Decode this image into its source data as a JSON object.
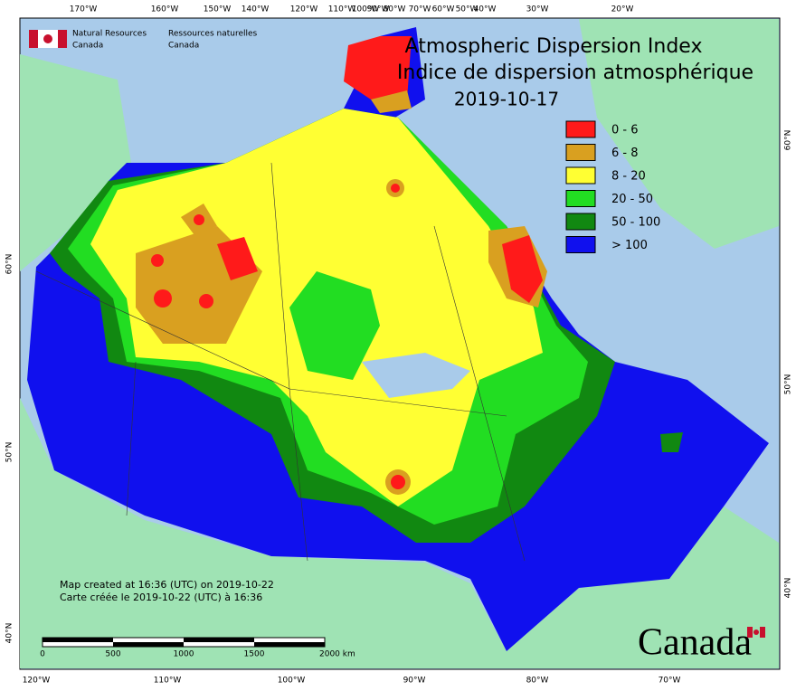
{
  "title": [
    "Atmospheric Dispersion Index",
    "Indice de dispersion atmosphérique",
    "2019-10-17"
  ],
  "legend": [
    {
      "label": "0 - 6",
      "color": "#ff1a1a"
    },
    {
      "label": "6 - 8",
      "color": "#d9a020"
    },
    {
      "label": "8 - 20",
      "color": "#ffff33"
    },
    {
      "label": "20 - 50",
      "color": "#22dd22"
    },
    {
      "label": "50 - 100",
      "color": "#118811"
    },
    {
      "label": "> 100",
      "color": "#1010ee"
    }
  ],
  "agency": {
    "english": [
      "Natural Resources",
      "Canada"
    ],
    "french": [
      "Ressources naturelles",
      "Canada"
    ]
  },
  "graticule": {
    "top": [
      "170°W",
      "160°W",
      "150°W",
      "140°W",
      "120°W",
      "110°W",
      "100°W",
      "90°W",
      "80°W",
      "70°W",
      "60°W",
      "50°W",
      "40°W",
      "30°W",
      "20°W"
    ],
    "bottom": [
      "120°W",
      "110°W",
      "100°W",
      "90°W",
      "80°W",
      "70°W"
    ],
    "left": [
      "60°N",
      "50°N",
      "40°N"
    ],
    "right": [
      "60°N",
      "50°N",
      "40°N"
    ]
  },
  "credit": [
    "Map created at 16:36 (UTC) on 2019-10-22",
    "Carte créée le 2019-10-22 (UTC) à 16:36"
  ],
  "scale": [
    "0",
    "500",
    "1000",
    "1500",
    "2000 km"
  ],
  "wordmark": "Canada"
}
